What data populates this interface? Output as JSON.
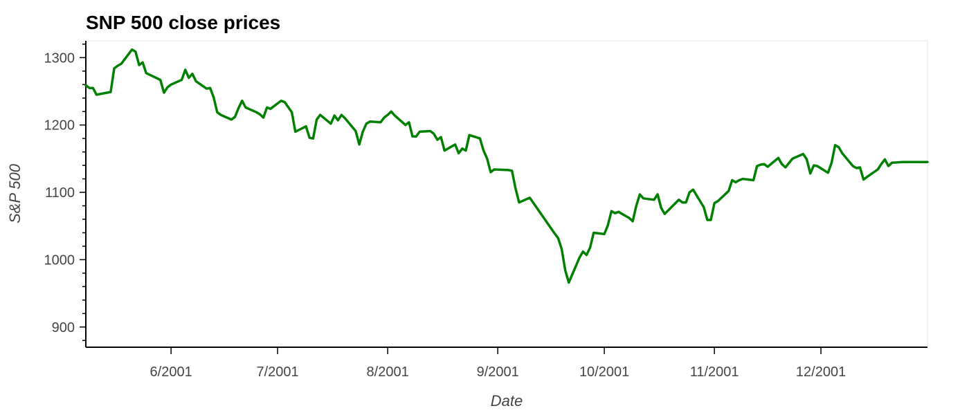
{
  "chart_data": {
    "type": "line",
    "title": "SNP 500 close prices",
    "xlabel": "Date",
    "ylabel": "S&P 500",
    "xlim": [
      "2001-05-08",
      "2001-12-31"
    ],
    "ylim": [
      870,
      1325
    ],
    "x_ticks": [
      {
        "date": "2001-06-01",
        "label": "6/2001"
      },
      {
        "date": "2001-07-01",
        "label": "7/2001"
      },
      {
        "date": "2001-08-01",
        "label": "8/2001"
      },
      {
        "date": "2001-09-01",
        "label": "9/2001"
      },
      {
        "date": "2001-10-01",
        "label": "10/2001"
      },
      {
        "date": "2001-11-01",
        "label": "11/2001"
      },
      {
        "date": "2001-12-01",
        "label": "12/2001"
      }
    ],
    "y_ticks": [
      900,
      1000,
      1100,
      1200,
      1300
    ],
    "y_minor_step": 20,
    "grid": false,
    "line_color": "#008000",
    "series": [
      {
        "points": [
          [
            "2001-05-08",
            1259
          ],
          [
            "2001-05-09",
            1255
          ],
          [
            "2001-05-10",
            1255
          ],
          [
            "2001-05-11",
            1245
          ],
          [
            "2001-05-14",
            1248
          ],
          [
            "2001-05-15",
            1249
          ],
          [
            "2001-05-16",
            1284
          ],
          [
            "2001-05-17",
            1288
          ],
          [
            "2001-05-18",
            1291
          ],
          [
            "2001-05-21",
            1312
          ],
          [
            "2001-05-22",
            1309
          ],
          [
            "2001-05-23",
            1289
          ],
          [
            "2001-05-24",
            1293
          ],
          [
            "2001-05-25",
            1277
          ],
          [
            "2001-05-29",
            1267
          ],
          [
            "2001-05-30",
            1248
          ],
          [
            "2001-05-31",
            1256
          ],
          [
            "2001-06-01",
            1260
          ],
          [
            "2001-06-04",
            1267
          ],
          [
            "2001-06-05",
            1282
          ],
          [
            "2001-06-06",
            1270
          ],
          [
            "2001-06-07",
            1276
          ],
          [
            "2001-06-08",
            1265
          ],
          [
            "2001-06-11",
            1254
          ],
          [
            "2001-06-12",
            1255
          ],
          [
            "2001-06-13",
            1241
          ],
          [
            "2001-06-14",
            1219
          ],
          [
            "2001-06-15",
            1215
          ],
          [
            "2001-06-18",
            1208
          ],
          [
            "2001-06-19",
            1212
          ],
          [
            "2001-06-20",
            1225
          ],
          [
            "2001-06-21",
            1236
          ],
          [
            "2001-06-22",
            1226
          ],
          [
            "2001-06-25",
            1219
          ],
          [
            "2001-06-26",
            1216
          ],
          [
            "2001-06-27",
            1211
          ],
          [
            "2001-06-28",
            1226
          ],
          [
            "2001-06-29",
            1224
          ],
          [
            "2001-07-02",
            1236
          ],
          [
            "2001-07-03",
            1234
          ],
          [
            "2001-07-05",
            1219
          ],
          [
            "2001-07-06",
            1190
          ],
          [
            "2001-07-09",
            1198
          ],
          [
            "2001-07-10",
            1181
          ],
          [
            "2001-07-11",
            1180
          ],
          [
            "2001-07-12",
            1208
          ],
          [
            "2001-07-13",
            1215
          ],
          [
            "2001-07-16",
            1202
          ],
          [
            "2001-07-17",
            1214
          ],
          [
            "2001-07-18",
            1207
          ],
          [
            "2001-07-19",
            1215
          ],
          [
            "2001-07-20",
            1210
          ],
          [
            "2001-07-23",
            1191
          ],
          [
            "2001-07-24",
            1171
          ],
          [
            "2001-07-25",
            1190
          ],
          [
            "2001-07-26",
            1202
          ],
          [
            "2001-07-27",
            1205
          ],
          [
            "2001-07-30",
            1204
          ],
          [
            "2001-07-31",
            1211
          ],
          [
            "2001-08-01",
            1215
          ],
          [
            "2001-08-02",
            1220
          ],
          [
            "2001-08-03",
            1214
          ],
          [
            "2001-08-06",
            1200
          ],
          [
            "2001-08-07",
            1204
          ],
          [
            "2001-08-08",
            1183
          ],
          [
            "2001-08-09",
            1183
          ],
          [
            "2001-08-10",
            1190
          ],
          [
            "2001-08-13",
            1191
          ],
          [
            "2001-08-14",
            1187
          ],
          [
            "2001-08-15",
            1178
          ],
          [
            "2001-08-16",
            1182
          ],
          [
            "2001-08-17",
            1162
          ],
          [
            "2001-08-20",
            1171
          ],
          [
            "2001-08-21",
            1158
          ],
          [
            "2001-08-22",
            1165
          ],
          [
            "2001-08-23",
            1162
          ],
          [
            "2001-08-24",
            1185
          ],
          [
            "2001-08-27",
            1180
          ],
          [
            "2001-08-28",
            1162
          ],
          [
            "2001-08-29",
            1150
          ],
          [
            "2001-08-30",
            1130
          ],
          [
            "2001-08-31",
            1134
          ],
          [
            "2001-09-04",
            1133
          ],
          [
            "2001-09-05",
            1132
          ],
          [
            "2001-09-06",
            1106
          ],
          [
            "2001-09-07",
            1085
          ],
          [
            "2001-09-10",
            1092
          ],
          [
            "2001-09-17",
            1039
          ],
          [
            "2001-09-18",
            1032
          ],
          [
            "2001-09-19",
            1016
          ],
          [
            "2001-09-20",
            984
          ],
          [
            "2001-09-21",
            966
          ],
          [
            "2001-09-24",
            1003
          ],
          [
            "2001-09-25",
            1012
          ],
          [
            "2001-09-26",
            1007
          ],
          [
            "2001-09-27",
            1018
          ],
          [
            "2001-09-28",
            1040
          ],
          [
            "2001-10-01",
            1038
          ],
          [
            "2001-10-02",
            1051
          ],
          [
            "2001-10-03",
            1072
          ],
          [
            "2001-10-04",
            1069
          ],
          [
            "2001-10-05",
            1071
          ],
          [
            "2001-10-08",
            1062
          ],
          [
            "2001-10-09",
            1057
          ],
          [
            "2001-10-10",
            1080
          ],
          [
            "2001-10-11",
            1097
          ],
          [
            "2001-10-12",
            1091
          ],
          [
            "2001-10-15",
            1089
          ],
          [
            "2001-10-16",
            1097
          ],
          [
            "2001-10-17",
            1077
          ],
          [
            "2001-10-18",
            1068
          ],
          [
            "2001-10-22",
            1089
          ],
          [
            "2001-10-23",
            1085
          ],
          [
            "2001-10-24",
            1085
          ],
          [
            "2001-10-25",
            1100
          ],
          [
            "2001-10-26",
            1104
          ],
          [
            "2001-10-29",
            1078
          ],
          [
            "2001-10-30",
            1059
          ],
          [
            "2001-10-31",
            1059
          ],
          [
            "2001-11-01",
            1084
          ],
          [
            "2001-11-02",
            1087
          ],
          [
            "2001-11-05",
            1102
          ],
          [
            "2001-11-06",
            1118
          ],
          [
            "2001-11-07",
            1115
          ],
          [
            "2001-11-08",
            1118
          ],
          [
            "2001-11-09",
            1120
          ],
          [
            "2001-11-12",
            1118
          ],
          [
            "2001-11-13",
            1139
          ],
          [
            "2001-11-14",
            1141
          ],
          [
            "2001-11-15",
            1142
          ],
          [
            "2001-11-16",
            1138
          ],
          [
            "2001-11-19",
            1151
          ],
          [
            "2001-11-20",
            1142
          ],
          [
            "2001-11-21",
            1137
          ],
          [
            "2001-11-23",
            1150
          ],
          [
            "2001-11-26",
            1157
          ],
          [
            "2001-11-27",
            1149
          ],
          [
            "2001-11-28",
            1128
          ],
          [
            "2001-11-29",
            1140
          ],
          [
            "2001-11-30",
            1139
          ],
          [
            "2001-12-03",
            1129
          ],
          [
            "2001-12-04",
            1144
          ],
          [
            "2001-12-05",
            1170
          ],
          [
            "2001-12-06",
            1167
          ],
          [
            "2001-12-07",
            1158
          ],
          [
            "2001-12-10",
            1139
          ],
          [
            "2001-12-11",
            1136
          ],
          [
            "2001-12-12",
            1137
          ],
          [
            "2001-12-13",
            1119
          ],
          [
            "2001-12-14",
            1123
          ],
          [
            "2001-12-17",
            1134
          ],
          [
            "2001-12-18",
            1142
          ],
          [
            "2001-12-19",
            1149
          ],
          [
            "2001-12-20",
            1139
          ],
          [
            "2001-12-21",
            1144
          ],
          [
            "2001-12-24",
            1145
          ],
          [
            "2001-12-26",
            1145
          ],
          [
            "2001-12-27",
            1145
          ],
          [
            "2001-12-28",
            1145
          ],
          [
            "2001-12-31",
            1145
          ]
        ]
      }
    ]
  }
}
